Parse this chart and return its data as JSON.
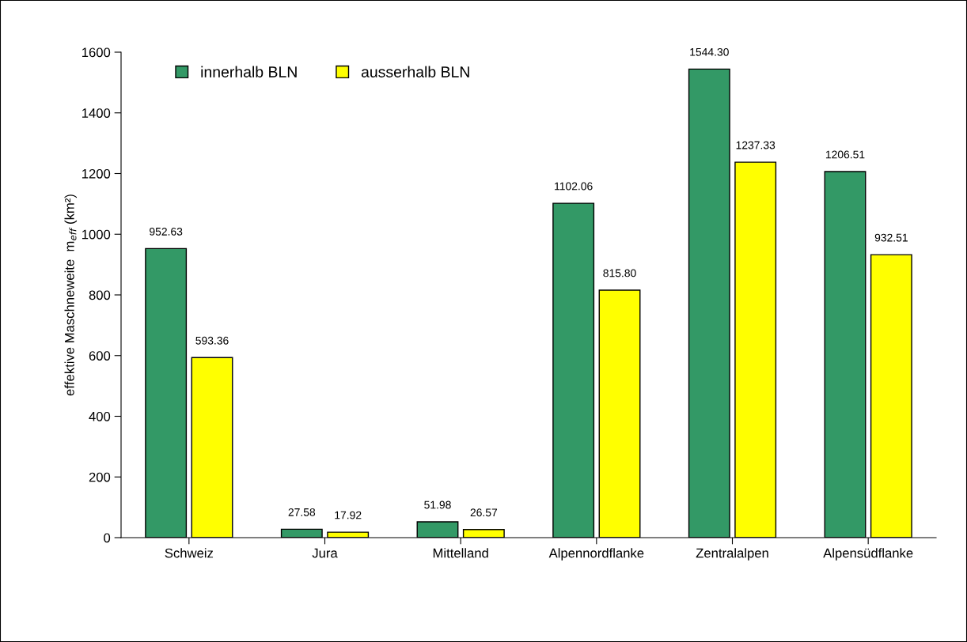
{
  "chart_data": {
    "type": "bar",
    "ylabel": "effektive Maschneweite  m$_{eff}$ (km²)",
    "categories": [
      "Schweiz",
      "Jura",
      "Mittelland",
      "Alpennordflanke",
      "Zentralalpen",
      "Alpensüdflanke"
    ],
    "series": [
      {
        "name": "innerhalb BLN",
        "color": "#339966",
        "values": [
          952.63,
          27.58,
          51.98,
          1102.06,
          1544.3,
          1206.51
        ],
        "value_labels": [
          "952.63",
          "27.58",
          "51.98",
          "1102.06",
          "1544.30",
          "1206.51"
        ]
      },
      {
        "name": "ausserhalb BLN",
        "color": "#ffff00",
        "values": [
          593.36,
          17.92,
          26.57,
          815.8,
          1237.33,
          932.51
        ],
        "value_labels": [
          "593.36",
          "17.92",
          "26.57",
          "815.80",
          "1237.33",
          "932.51"
        ]
      }
    ],
    "ylim": [
      0,
      1600
    ],
    "yticks": [
      0,
      200,
      400,
      600,
      800,
      1000,
      1200,
      1400,
      1600
    ],
    "grid": false,
    "legend": "top left"
  }
}
